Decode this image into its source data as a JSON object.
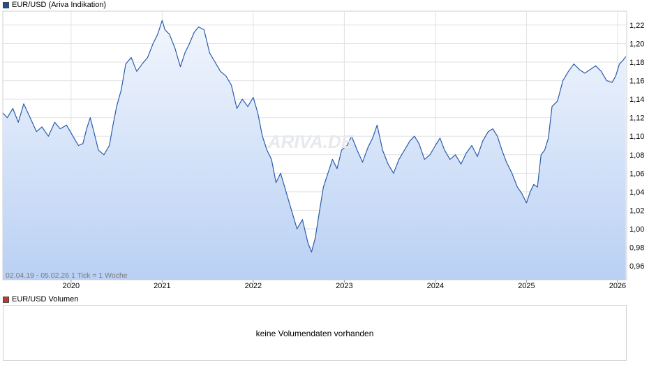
{
  "legend": {
    "price_label": "EUR/USD (Ariva Indikation)",
    "volume_label": "EUR/USD Volumen",
    "price_color": "#1f4e9c",
    "volume_color": "#c0392b"
  },
  "info_text": "02.04.19 - 05.02.26    1 Tick = 1 Woche",
  "watermark": "ARIVA.DE",
  "volume": {
    "message": "keine Volumendaten vorhanden"
  },
  "chart_data": {
    "type": "area",
    "line_color": "#2a5caa",
    "fill_top_color": "#f2f6fd",
    "fill_bottom_color": "#b9d0f4",
    "grid": true,
    "y_axis_position": "right",
    "ylim": [
      0.945,
      1.235
    ],
    "xlim": [
      2019.25,
      2026.1
    ],
    "y_ticks": [
      0.96,
      0.98,
      1.0,
      1.02,
      1.04,
      1.06,
      1.08,
      1.1,
      1.12,
      1.14,
      1.16,
      1.18,
      1.2,
      1.22
    ],
    "y_tick_labels": [
      "0,96",
      "0,98",
      "1,00",
      "1,02",
      "1,04",
      "1,06",
      "1,08",
      "1,10",
      "1,12",
      "1,14",
      "1,16",
      "1,18",
      "1,20",
      "1,22"
    ],
    "x_ticks": [
      2020,
      2021,
      2022,
      2023,
      2024,
      2025,
      2026
    ],
    "x_tick_labels": [
      "2020",
      "2021",
      "2022",
      "2023",
      "2024",
      "2025",
      "2026"
    ],
    "series": [
      {
        "x": [
          2019.25,
          2019.3,
          2019.36,
          2019.42,
          2019.48,
          2019.55,
          2019.62,
          2019.68,
          2019.75,
          2019.82,
          2019.88,
          2019.95,
          2020.02,
          2020.08,
          2020.13,
          2020.17,
          2020.21,
          2020.25,
          2020.3,
          2020.36,
          2020.42,
          2020.46,
          2020.5,
          2020.55,
          2020.6,
          2020.66,
          2020.72,
          2020.78,
          2020.84,
          2020.9,
          2020.95,
          2021.0,
          2021.03,
          2021.08,
          2021.14,
          2021.2,
          2021.25,
          2021.3,
          2021.35,
          2021.4,
          2021.46,
          2021.52,
          2021.58,
          2021.64,
          2021.7,
          2021.76,
          2021.82,
          2021.88,
          2021.94,
          2022.0,
          2022.05,
          2022.1,
          2022.15,
          2022.2,
          2022.25,
          2022.3,
          2022.36,
          2022.42,
          2022.48,
          2022.54,
          2022.6,
          2022.64,
          2022.68,
          2022.72,
          2022.77,
          2022.82,
          2022.87,
          2022.92,
          2022.97,
          2023.03,
          2023.08,
          2023.14,
          2023.2,
          2023.26,
          2023.31,
          2023.36,
          2023.42,
          2023.48,
          2023.54,
          2023.6,
          2023.66,
          2023.72,
          2023.77,
          2023.82,
          2023.88,
          2023.94,
          2024.0,
          2024.05,
          2024.1,
          2024.16,
          2024.22,
          2024.28,
          2024.34,
          2024.4,
          2024.46,
          2024.52,
          2024.58,
          2024.63,
          2024.68,
          2024.73,
          2024.78,
          2024.84,
          2024.9,
          2024.95,
          2025.0,
          2025.04,
          2025.08,
          2025.12,
          2025.16,
          2025.2,
          2025.24,
          2025.28,
          2025.34,
          2025.4,
          2025.46,
          2025.52,
          2025.58,
          2025.64,
          2025.7,
          2025.76,
          2025.82,
          2025.88,
          2025.94,
          2025.98,
          2026.02,
          2026.06,
          2026.09
        ],
        "values": [
          1.125,
          1.12,
          1.13,
          1.115,
          1.135,
          1.12,
          1.105,
          1.11,
          1.1,
          1.115,
          1.108,
          1.112,
          1.1,
          1.09,
          1.092,
          1.108,
          1.12,
          1.105,
          1.085,
          1.08,
          1.09,
          1.112,
          1.132,
          1.15,
          1.178,
          1.185,
          1.17,
          1.178,
          1.185,
          1.2,
          1.21,
          1.225,
          1.215,
          1.21,
          1.195,
          1.175,
          1.19,
          1.2,
          1.212,
          1.218,
          1.215,
          1.19,
          1.18,
          1.17,
          1.165,
          1.155,
          1.13,
          1.14,
          1.132,
          1.142,
          1.125,
          1.1,
          1.085,
          1.075,
          1.05,
          1.06,
          1.04,
          1.02,
          1.0,
          1.01,
          0.985,
          0.975,
          0.99,
          1.015,
          1.045,
          1.06,
          1.075,
          1.065,
          1.085,
          1.09,
          1.1,
          1.085,
          1.072,
          1.088,
          1.098,
          1.112,
          1.085,
          1.07,
          1.06,
          1.075,
          1.085,
          1.095,
          1.1,
          1.092,
          1.075,
          1.08,
          1.09,
          1.098,
          1.085,
          1.075,
          1.08,
          1.07,
          1.082,
          1.09,
          1.078,
          1.095,
          1.105,
          1.108,
          1.1,
          1.085,
          1.072,
          1.06,
          1.045,
          1.038,
          1.028,
          1.04,
          1.048,
          1.045,
          1.08,
          1.085,
          1.098,
          1.132,
          1.138,
          1.16,
          1.17,
          1.178,
          1.172,
          1.168,
          1.172,
          1.176,
          1.17,
          1.16,
          1.158,
          1.165,
          1.178,
          1.182,
          1.186
        ]
      }
    ]
  }
}
